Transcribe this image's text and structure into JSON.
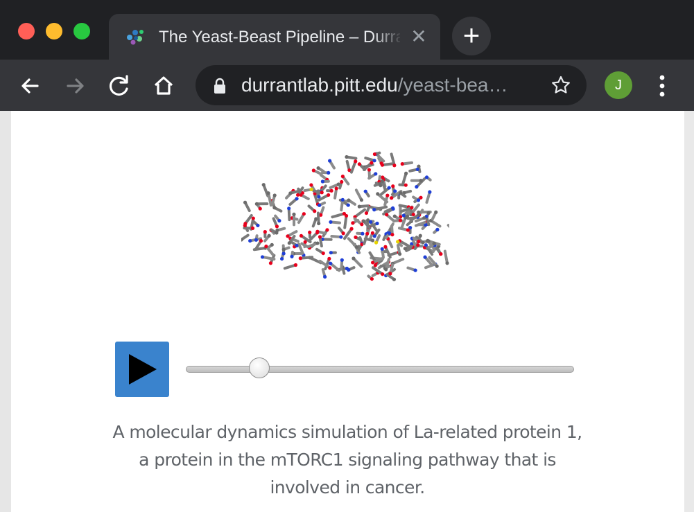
{
  "window": {
    "controls": [
      "close",
      "minimize",
      "zoom"
    ]
  },
  "tab": {
    "title": "The Yeast-Beast Pipeline – Durrant Lab",
    "favicon": "molecule-favicon-icon",
    "close_icon": "close-icon"
  },
  "toolbar": {
    "back_icon": "arrow-left-icon",
    "forward_icon": "arrow-right-icon",
    "reload_icon": "reload-icon",
    "home_icon": "home-icon",
    "url_host": "durrantlab.pitt.edu",
    "url_path": "/yeast-bea…",
    "lock_icon": "lock-icon",
    "bookmark_icon": "star-icon",
    "profile_initial": "J",
    "menu_icon": "kebab-menu-icon",
    "new_tab_label": "+"
  },
  "player": {
    "play_icon": "play-icon",
    "progress": 0.19
  },
  "caption": "A molecular dynamics simulation of La-related protein 1, a protein in the mTORC1 signaling pathway that is involved in cancer.",
  "colors": {
    "chrome_dark": "#202124",
    "chrome_mid": "#35363a",
    "play_button": "#3a83cd",
    "avatar": "#5f9e36",
    "caption_text": "#5f6368",
    "atom_oxygen": "#e8001c",
    "atom_nitrogen": "#1f3fd6",
    "atom_carbon": "#7a7a7a",
    "atom_sulfur": "#e6d400"
  }
}
